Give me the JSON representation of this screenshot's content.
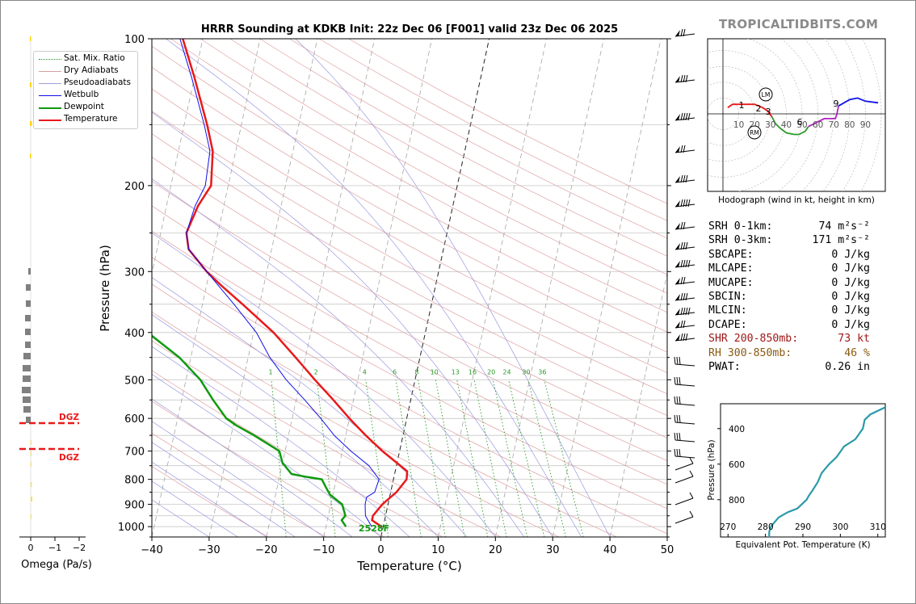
{
  "chart_data": [
    {
      "type": "skewt",
      "title": "HRRR Sounding at KDKB Init: 22z Dec 06 [F001] valid 23z Dec 06 2025",
      "xlabel": "Temperature (°C)",
      "ylabel": "Pressure (hPa)",
      "xlim": [
        -40,
        50
      ],
      "ylim": [
        1050,
        100
      ],
      "x_ticks": [
        -40,
        -30,
        -20,
        -10,
        0,
        10,
        20,
        30,
        40,
        50
      ],
      "x_tick_labels": [
        "−40",
        "−30",
        "−20",
        "−10",
        "0",
        "10",
        "20",
        "30",
        "40",
        "50"
      ],
      "y_ticks": [
        100,
        200,
        300,
        400,
        500,
        600,
        700,
        800,
        900,
        1000
      ],
      "legend": {
        "position": "top-left",
        "entries": [
          "Sat. Mix. Ratio",
          "Dry Adiabats",
          "Pseudoadiabats",
          "Wetbulb",
          "Dewpoint",
          "Temperature"
        ]
      },
      "mixing_ratio_labels": [
        "1",
        "2",
        "4",
        "6",
        "8",
        "10",
        "13",
        "16",
        "20",
        "24",
        "30",
        "36"
      ],
      "surface_label": "2528F",
      "series": [
        {
          "name": "Temperature",
          "color": "#e8191a",
          "points": [
            [
              1000,
              -0.3
            ],
            [
              970,
              -2.2
            ],
            [
              950,
              -2.2
            ],
            [
              900,
              -1.0
            ],
            [
              850,
              1.0
            ],
            [
              800,
              2.3
            ],
            [
              770,
              2.1
            ],
            [
              700,
              -3.0
            ],
            [
              650,
              -6.5
            ],
            [
              600,
              -10.0
            ],
            [
              550,
              -13.5
            ],
            [
              500,
              -17.5
            ],
            [
              450,
              -21.7
            ],
            [
              400,
              -26.5
            ],
            [
              350,
              -33.0
            ],
            [
              320,
              -37.5
            ],
            [
              300,
              -40.5
            ],
            [
              270,
              -44.5
            ],
            [
              250,
              -45.5
            ],
            [
              220,
              -44.5
            ],
            [
              200,
              -43.0
            ],
            [
              170,
              -44.0
            ],
            [
              150,
              -46.0
            ],
            [
              120,
              -50.0
            ],
            [
              100,
              -53.5
            ]
          ]
        },
        {
          "name": "Dewpoint",
          "color": "#0f9a0f",
          "points": [
            [
              1000,
              -6.5
            ],
            [
              970,
              -7.5
            ],
            [
              950,
              -7.0
            ],
            [
              900,
              -8.0
            ],
            [
              860,
              -10.5
            ],
            [
              830,
              -11.5
            ],
            [
              800,
              -12.5
            ],
            [
              790,
              -15.5
            ],
            [
              780,
              -18.0
            ],
            [
              740,
              -20.0
            ],
            [
              700,
              -21.0
            ],
            [
              650,
              -26.0
            ],
            [
              620,
              -29.5
            ],
            [
              600,
              -31.5
            ],
            [
              550,
              -34.5
            ],
            [
              500,
              -37.5
            ],
            [
              450,
              -42.0
            ],
            [
              400,
              -48.5
            ],
            [
              350,
              -54.0
            ],
            [
              320,
              -58.5
            ],
            [
              300,
              -60.5
            ],
            [
              270,
              -60.5
            ],
            [
              255,
              -64.0
            ],
            [
              240,
              -71.5
            ],
            [
              220,
              -80.0
            ],
            [
              200,
              -86.0
            ],
            [
              170,
              -89.0
            ],
            [
              150,
              -90.0
            ],
            [
              120,
              -92.0
            ],
            [
              100,
              -93.0
            ]
          ]
        },
        {
          "name": "Wetbulb",
          "color": "#1010e8",
          "points": [
            [
              1000,
              -2.0
            ],
            [
              950,
              -3.5
            ],
            [
              900,
              -4.0
            ],
            [
              870,
              -4.0
            ],
            [
              850,
              -2.8
            ],
            [
              800,
              -2.5
            ],
            [
              750,
              -4.8
            ],
            [
              700,
              -8.5
            ],
            [
              650,
              -12.0
            ],
            [
              600,
              -15.0
            ],
            [
              550,
              -18.5
            ],
            [
              500,
              -22.5
            ],
            [
              450,
              -26.2
            ],
            [
              400,
              -29.5
            ],
            [
              350,
              -34.5
            ],
            [
              300,
              -40.5
            ],
            [
              270,
              -44.5
            ],
            [
              250,
              -45.5
            ],
            [
              220,
              -45.0
            ],
            [
              200,
              -44.0
            ],
            [
              170,
              -44.5
            ],
            [
              150,
              -46.5
            ],
            [
              120,
              -50.5
            ],
            [
              100,
              -54.0
            ]
          ]
        }
      ]
    },
    {
      "type": "line",
      "title": "Hodograph (wind in kt, height in km)",
      "ring_labels": [
        "10",
        "20",
        "30",
        "40",
        "50",
        "60",
        "70",
        "80",
        "90"
      ],
      "height_labels": [
        "1",
        "2",
        "3",
        "6",
        "9"
      ],
      "markers": [
        "LM",
        "RM"
      ],
      "series": [
        {
          "name": "0-3 km",
          "color": "#e8191a",
          "points": [
            [
              3,
              4
            ],
            [
              6,
              6
            ],
            [
              10,
              6
            ],
            [
              15,
              6
            ],
            [
              20,
              6
            ],
            [
              25,
              4
            ],
            [
              28,
              2
            ],
            [
              31,
              -2
            ]
          ]
        },
        {
          "name": "3-6 km",
          "color": "#2a9a2a",
          "points": [
            [
              31,
              -2
            ],
            [
              33,
              -6
            ],
            [
              36,
              -9
            ],
            [
              40,
              -12
            ],
            [
              45,
              -13
            ],
            [
              48,
              -13
            ],
            [
              52,
              -11
            ],
            [
              54,
              -8
            ]
          ]
        },
        {
          "name": "6-9 km",
          "color": "#b020c0",
          "points": [
            [
              54,
              -8
            ],
            [
              60,
              -5
            ],
            [
              64,
              -3
            ],
            [
              68,
              -3
            ],
            [
              71,
              -3
            ],
            [
              72,
              0
            ],
            [
              73,
              5
            ]
          ]
        },
        {
          "name": "9+ km",
          "color": "#1010e8",
          "points": [
            [
              73,
              5
            ],
            [
              80,
              9
            ],
            [
              85,
              10
            ],
            [
              90,
              8
            ],
            [
              98,
              7
            ]
          ]
        }
      ]
    },
    {
      "type": "line",
      "xlabel": "Equivalent Pot. Temperature (K)",
      "ylabel": "Pressure (hPa)",
      "x_ticks": [
        270,
        280,
        290,
        300,
        310
      ],
      "y_ticks": [
        400,
        600,
        800
      ],
      "xlim": [
        268,
        312
      ],
      "ylim": [
        1010,
        260
      ],
      "series": [
        {
          "name": "Theta-e",
          "color": "#2a9aaa",
          "points": [
            [
              1010,
              281
            ],
            [
              980,
              281
            ],
            [
              950,
              281.5
            ],
            [
              900,
              283.5
            ],
            [
              870,
              286
            ],
            [
              850,
              288.5
            ],
            [
              820,
              290
            ],
            [
              800,
              291
            ],
            [
              780,
              291.5
            ],
            [
              750,
              292.5
            ],
            [
              700,
              294
            ],
            [
              650,
              295
            ],
            [
              600,
              297
            ],
            [
              560,
              299
            ],
            [
              500,
              301
            ],
            [
              460,
              304
            ],
            [
              400,
              306
            ],
            [
              350,
              306.5
            ],
            [
              320,
              308
            ],
            [
              300,
              310
            ],
            [
              280,
              312
            ]
          ]
        }
      ]
    },
    {
      "type": "bar",
      "xlabel": "Omega (Pa/s)",
      "x_ticks": [
        "0",
        "−1",
        "−2"
      ],
      "annotations": [
        "DGZ",
        "DGZ"
      ]
    }
  ],
  "brand": "TROPICALTIDBITS.COM",
  "stats": [
    {
      "key": "SRH 0-1km:",
      "value": "74 m²s⁻²",
      "color": "#000000"
    },
    {
      "key": "SRH 0-3km:",
      "value": "171 m²s⁻²",
      "color": "#000000"
    },
    {
      "key": "SBCAPE:",
      "value": "0 J/kg",
      "color": "#000000"
    },
    {
      "key": "MLCAPE:",
      "value": "0 J/kg",
      "color": "#000000"
    },
    {
      "key": "MUCAPE:",
      "value": "0 J/kg",
      "color": "#000000"
    },
    {
      "key": "SBCIN:",
      "value": "0 J/kg",
      "color": "#000000"
    },
    {
      "key": "MLCIN:",
      "value": "0 J/kg",
      "color": "#000000"
    },
    {
      "key": "DCAPE:",
      "value": "0 J/kg",
      "color": "#000000"
    },
    {
      "key": "SHR 200-850mb:",
      "value": "73 kt",
      "color": "#a01818"
    },
    {
      "key": "RH 300-850mb:",
      "value": "46 %",
      "color": "#8a5a10"
    },
    {
      "key": "PWAT:",
      "value": "0.26 in",
      "color": "#000000"
    }
  ]
}
